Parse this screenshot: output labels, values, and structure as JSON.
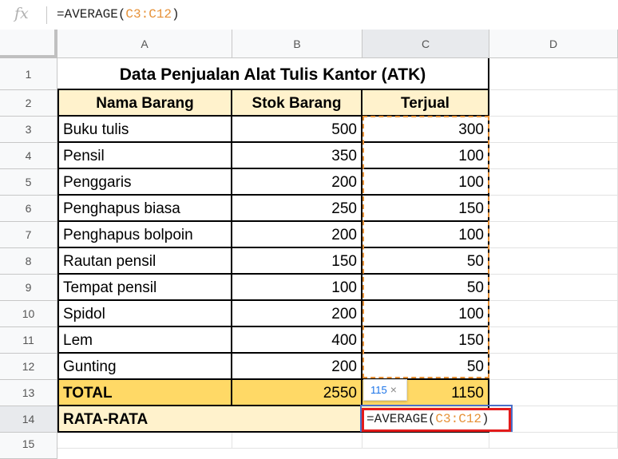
{
  "formula_bar": {
    "fx_label": "fx",
    "prefix": "=AVERAGE(",
    "ref": "C3:C12",
    "suffix": ")"
  },
  "columns": [
    "A",
    "B",
    "C",
    "D"
  ],
  "rows": [
    "1",
    "2",
    "3",
    "4",
    "5",
    "6",
    "7",
    "8",
    "9",
    "10",
    "11",
    "12",
    "13",
    "14",
    "15"
  ],
  "title": "Data Penjualan Alat Tulis Kantor (ATK)",
  "headers": {
    "name": "Nama Barang",
    "stock": "Stok Barang",
    "sold": "Terjual"
  },
  "items": [
    {
      "name": "Buku tulis",
      "stock": "500",
      "sold": "300"
    },
    {
      "name": "Pensil",
      "stock": "350",
      "sold": "100"
    },
    {
      "name": "Penggaris",
      "stock": "200",
      "sold": "100"
    },
    {
      "name": "Penghapus biasa",
      "stock": "250",
      "sold": "150"
    },
    {
      "name": "Penghapus bolpoin",
      "stock": "200",
      "sold": "100"
    },
    {
      "name": "Rautan pensil",
      "stock": "150",
      "sold": "50"
    },
    {
      "name": "Tempat pensil",
      "stock": "100",
      "sold": "50"
    },
    {
      "name": "Spidol",
      "stock": "200",
      "sold": "100"
    },
    {
      "name": "Lem",
      "stock": "400",
      "sold": "150"
    },
    {
      "name": "Gunting",
      "stock": "200",
      "sold": "50"
    }
  ],
  "total": {
    "label": "TOTAL",
    "stock": "2550",
    "sold": "1150"
  },
  "average": {
    "label": "RATA-RATA"
  },
  "tooltip": {
    "value": "115",
    "close": "×"
  },
  "editor": {
    "prefix": "=AVERAGE(",
    "ref": "C3:C12",
    "suffix": ")"
  }
}
